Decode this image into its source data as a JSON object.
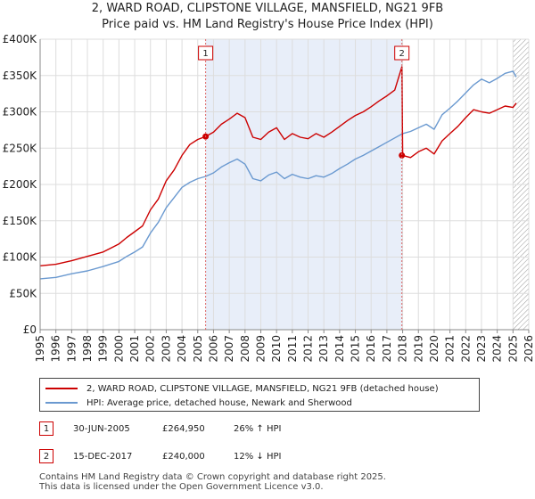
{
  "title_line1": "2, WARD ROAD, CLIPSTONE VILLAGE, MANSFIELD, NG21 9FB",
  "title_line2": "Price paid vs. HM Land Registry's House Price Index (HPI)",
  "colors": {
    "property": "#cc0000",
    "hpi": "#6a99d0",
    "shade": "#e8eef9",
    "grid": "#dddddd"
  },
  "chart_data": {
    "type": "line",
    "title": "Price paid vs. HM Land Registry's House Price Index (HPI)",
    "xlim": [
      1995,
      2026
    ],
    "ylim": [
      0,
      400000
    ],
    "x_ticks": [
      "1995",
      "1996",
      "1997",
      "1998",
      "1999",
      "2000",
      "2001",
      "2002",
      "2003",
      "2004",
      "2005",
      "2006",
      "2007",
      "2008",
      "2009",
      "2010",
      "2011",
      "2012",
      "2013",
      "2014",
      "2015",
      "2016",
      "2017",
      "2018",
      "2019",
      "2020",
      "2021",
      "2022",
      "2023",
      "2024",
      "2025",
      "2026"
    ],
    "y_ticks": [
      {
        "value": 0,
        "label": "£0"
      },
      {
        "value": 50000,
        "label": "£50K"
      },
      {
        "value": 100000,
        "label": "£100K"
      },
      {
        "value": 150000,
        "label": "£150K"
      },
      {
        "value": 200000,
        "label": "£200K"
      },
      {
        "value": 250000,
        "label": "£250K"
      },
      {
        "value": 300000,
        "label": "£300K"
      },
      {
        "value": 350000,
        "label": "£350K"
      },
      {
        "value": 400000,
        "label": "£400K"
      }
    ],
    "series": [
      {
        "name": "2, WARD ROAD, CLIPSTONE VILLAGE, MANSFIELD, NG21 9FB (detached house)",
        "color": "#cc0000",
        "x": [
          1995,
          1996,
          1997,
          1998,
          1999,
          2000,
          2000.5,
          2001,
          2001.5,
          2002,
          2002.5,
          2003,
          2003.5,
          2004,
          2004.5,
          2005,
          2005.5,
          2006,
          2006.5,
          2007,
          2007.5,
          2008,
          2008.5,
          2009,
          2009.5,
          2010,
          2010.5,
          2011,
          2011.5,
          2012,
          2012.5,
          2013,
          2013.5,
          2014,
          2014.5,
          2015,
          2015.5,
          2016,
          2016.5,
          2017,
          2017.5,
          2017.95,
          2018,
          2018.5,
          2019,
          2019.5,
          2020,
          2020.5,
          2021,
          2021.5,
          2022,
          2022.5,
          2023,
          2023.5,
          2024,
          2024.5,
          2025,
          2025.2
        ],
        "values": [
          88000,
          90000,
          95000,
          101000,
          107000,
          118000,
          127000,
          135000,
          143000,
          165000,
          180000,
          205000,
          220000,
          240000,
          255000,
          262000,
          266000,
          272000,
          283000,
          290000,
          298000,
          292000,
          265000,
          262000,
          272000,
          278000,
          262000,
          270000,
          265000,
          263000,
          270000,
          265000,
          272000,
          280000,
          288000,
          295000,
          300000,
          307000,
          315000,
          322000,
          330000,
          362000,
          240000,
          237000,
          245000,
          250000,
          242000,
          260000,
          270000,
          280000,
          292000,
          303000,
          300000,
          298000,
          303000,
          308000,
          306000,
          312000
        ]
      },
      {
        "name": "HPI: Average price, detached house, Newark and Sherwood",
        "color": "#6a99d0",
        "x": [
          1995,
          1996,
          1997,
          1998,
          1999,
          2000,
          2000.5,
          2001,
          2001.5,
          2002,
          2002.5,
          2003,
          2003.5,
          2004,
          2004.5,
          2005,
          2005.5,
          2006,
          2006.5,
          2007,
          2007.5,
          2008,
          2008.5,
          2009,
          2009.5,
          2010,
          2010.5,
          2011,
          2011.5,
          2012,
          2012.5,
          2013,
          2013.5,
          2014,
          2014.5,
          2015,
          2015.5,
          2016,
          2016.5,
          2017,
          2017.5,
          2018,
          2018.5,
          2019,
          2019.5,
          2020,
          2020.5,
          2021,
          2021.5,
          2022,
          2022.5,
          2023,
          2023.5,
          2024,
          2024.5,
          2025,
          2025.2
        ],
        "values": [
          70000,
          72000,
          77000,
          81000,
          87000,
          94000,
          101000,
          107000,
          114000,
          133000,
          148000,
          168000,
          182000,
          196000,
          203000,
          208000,
          211000,
          216000,
          224000,
          230000,
          235000,
          228000,
          208000,
          205000,
          213000,
          217000,
          208000,
          214000,
          210000,
          208000,
          212000,
          210000,
          215000,
          222000,
          228000,
          235000,
          240000,
          246000,
          252000,
          258000,
          264000,
          270000,
          273000,
          278000,
          283000,
          276000,
          296000,
          305000,
          315000,
          326000,
          337000,
          345000,
          340000,
          346000,
          353000,
          356000,
          348000
        ]
      }
    ],
    "annotations": [
      {
        "label": "1",
        "x": 2005.5
      },
      {
        "label": "2",
        "x": 2017.95
      }
    ],
    "shaded_range": [
      2005.5,
      2017.95
    ],
    "hatched_from": 2025.0
  },
  "legend": {
    "property_label": "2, WARD ROAD, CLIPSTONE VILLAGE, MANSFIELD, NG21 9FB (detached house)",
    "hpi_label": "HPI: Average price, detached house, Newark and Sherwood"
  },
  "transactions": [
    {
      "num": "1",
      "date": "30-JUN-2005",
      "price": "£264,950",
      "hpi": "26% ↑ HPI"
    },
    {
      "num": "2",
      "date": "15-DEC-2017",
      "price": "£240,000",
      "hpi": "12% ↓ HPI"
    }
  ],
  "footer_line1": "Contains HM Land Registry data © Crown copyright and database right 2025.",
  "footer_line2": "This data is licensed under the Open Government Licence v3.0."
}
